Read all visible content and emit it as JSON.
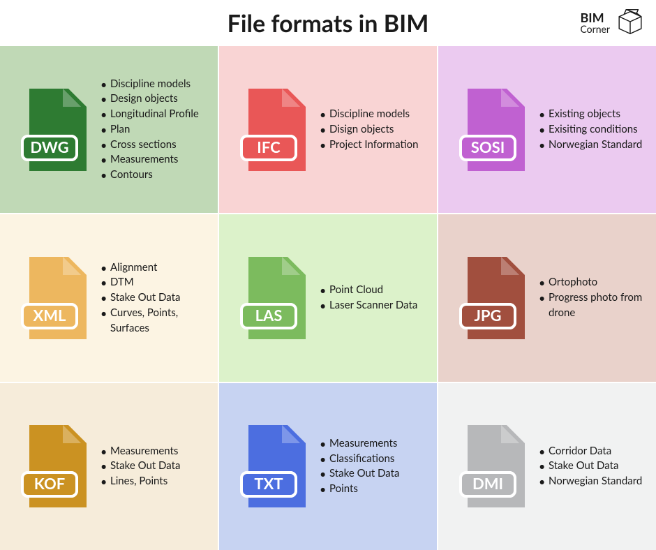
{
  "title": "File formats in BIM",
  "logo": {
    "line1": "BIM",
    "line2": "Corner"
  },
  "grid_columns": 3,
  "grid_rows": 3,
  "cells": [
    {
      "ext": "DWG",
      "bg_color": "#c0d9b6",
      "icon_color": "#2e7b32",
      "bullets": [
        "Discipline models",
        "Design objects",
        "Longitudinal Profile",
        "Plan",
        "Cross sections",
        "Measurements",
        "Contours"
      ]
    },
    {
      "ext": "IFC",
      "bg_color": "#f9d4d4",
      "icon_color": "#e95757",
      "bullets": [
        "Discipline models",
        "Disign objects",
        "Project Information"
      ]
    },
    {
      "ext": "SOSI",
      "bg_color": "#ebcaf0",
      "icon_color": "#c061d1",
      "bullets": [
        "Existing objects",
        "Exisiting conditions",
        "Norwegian Standard"
      ]
    },
    {
      "ext": "XML",
      "bg_color": "#fcf4e3",
      "icon_color": "#edb75f",
      "bullets": [
        "Alignment",
        "DTM",
        "Stake Out Data",
        "Curves, Points, Surfaces"
      ]
    },
    {
      "ext": "LAS",
      "bg_color": "#dcf2ca",
      "icon_color": "#7cbb5e",
      "bullets": [
        "Point Cloud",
        "Laser Scanner Data"
      ]
    },
    {
      "ext": "JPG",
      "bg_color": "#e9d2cb",
      "icon_color": "#a14f3e",
      "bullets": [
        "Ortophoto",
        "Progress photo from drone"
      ]
    },
    {
      "ext": "KOF",
      "bg_color": "#f6ecda",
      "icon_color": "#cb9222",
      "bullets": [
        "Measurements",
        "Stake Out Data",
        "Lines, Points"
      ]
    },
    {
      "ext": "TXT",
      "bg_color": "#c7d3f2",
      "icon_color": "#4c6ee0",
      "bullets": [
        "Measurements",
        "Classifications",
        "Stake Out Data",
        "Points"
      ]
    },
    {
      "ext": "DMI",
      "bg_color": "#f1f2f2",
      "icon_color": "#b7b8ba",
      "bullets": [
        "Corridor Data",
        "Stake Out Data",
        "Norwegian Standard"
      ]
    }
  ],
  "text_color": "#1a1a1a",
  "title_fontsize": 34,
  "bullet_fontsize": 15
}
